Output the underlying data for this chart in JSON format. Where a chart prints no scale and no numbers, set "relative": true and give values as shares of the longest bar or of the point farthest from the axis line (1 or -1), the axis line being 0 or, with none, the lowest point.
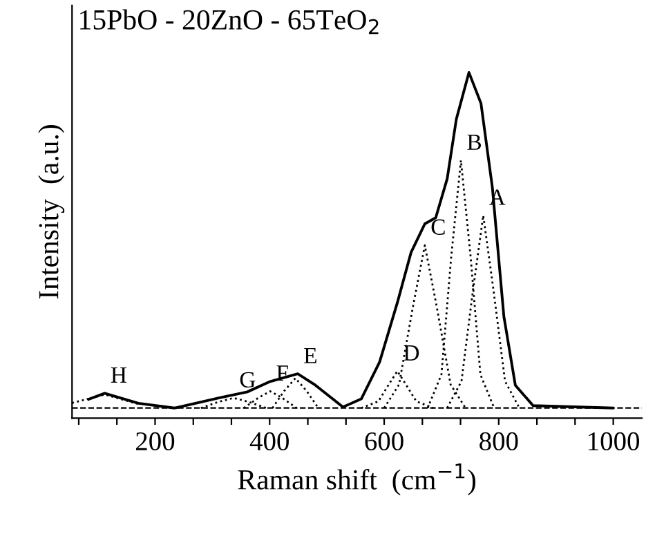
{
  "chart_data": {
    "type": "line",
    "relative": true,
    "title": "15PbO - 20ZnO - 65TeO$_{2}$",
    "xlabel": "Raman shift  (cm$^{−1}$)",
    "ylabel": "Intensity  (a.u.)",
    "xlim": [
      55,
      1050
    ],
    "xticks": [
      {
        "value": 66.7,
        "label": null
      },
      {
        "value": 133.3,
        "label": null
      },
      200,
      {
        "value": 266.7,
        "label": null
      },
      {
        "value": 333.3,
        "label": null
      },
      400,
      {
        "value": 466.7,
        "label": null
      },
      {
        "value": 533.3,
        "label": null
      },
      600,
      {
        "value": 666.7,
        "label": null
      },
      {
        "value": 733.3,
        "label": null
      },
      800,
      {
        "value": 866.7,
        "label": null
      },
      {
        "value": 933.3,
        "label": null
      },
      1000
    ],
    "series": [
      {
        "color": "#000000",
        "line_style": "solid",
        "x": [
          84,
          112,
          171,
          234,
          314,
          361,
          401,
          449,
          480,
          528,
          560,
          592,
          623,
          647,
          671,
          690,
          710,
          726,
          748,
          769,
          789,
          809,
          829,
          860,
          999
        ],
        "values": [
          0.026,
          0.044,
          0.014,
          0,
          0.031,
          0.048,
          0.079,
          0.102,
          0.068,
          0.003,
          0.027,
          0.137,
          0.314,
          0.464,
          0.549,
          0.567,
          0.683,
          0.861,
          1.0,
          0.908,
          0.656,
          0.273,
          0.068,
          0.007,
          0
        ]
      },
      {
        "color": "#000000",
        "line_style": "dotted",
        "x": [
          710,
          735,
          755,
          773,
          791,
          811,
          836
        ],
        "values": [
          0,
          0.08,
          0.35,
          0.574,
          0.35,
          0.08,
          0
        ]
      },
      {
        "color": "#000000",
        "line_style": "dotted",
        "x": [
          676,
          700,
          717,
          734,
          751,
          768,
          792
        ],
        "values": [
          0,
          0.1,
          0.45,
          0.738,
          0.45,
          0.1,
          0
        ]
      },
      {
        "color": "#000000",
        "line_style": "dotted",
        "x": [
          600,
          626,
          650,
          671,
          692,
          716,
          742
        ],
        "values": [
          0,
          0.07,
          0.3,
          0.485,
          0.3,
          0.07,
          0
        ]
      },
      {
        "color": "#000000",
        "line_style": "dotted",
        "x": [
          560,
          590,
          608,
          623,
          638,
          656,
          686
        ],
        "values": [
          0,
          0.02,
          0.07,
          0.11,
          0.07,
          0.02,
          0
        ]
      },
      {
        "color": "#000000",
        "line_style": "dotted",
        "x": [
          405,
          425,
          445,
          465,
          485
        ],
        "values": [
          0,
          0.05,
          0.089,
          0.05,
          0
        ]
      },
      {
        "color": "#000000",
        "line_style": "dotted",
        "x": [
          355,
          380,
          401,
          422,
          447
        ],
        "values": [
          0,
          0.03,
          0.05,
          0.03,
          0
        ]
      },
      {
        "color": "#000000",
        "line_style": "dotted",
        "x": [
          280,
          310,
          337,
          364,
          394
        ],
        "values": [
          0,
          0.018,
          0.03,
          0.018,
          0
        ]
      },
      {
        "color": "#000000",
        "line_style": "dotted",
        "x": [
          55,
          112,
          171
        ],
        "values": [
          0.015,
          0.04,
          0.012
        ]
      }
    ],
    "ref_lines": [
      {
        "axis": "y",
        "value": 0,
        "line_style": "dashed",
        "color": "#000000"
      }
    ],
    "annotations": [
      {
        "text": "A",
        "x": 773,
        "y": 0.574
      },
      {
        "text": "B",
        "x": 734,
        "y": 0.738
      },
      {
        "text": "C",
        "x": 671,
        "y": 0.485
      },
      {
        "text": "D",
        "x": 623,
        "y": 0.11
      },
      {
        "text": "E",
        "x": 449,
        "y": 0.102
      },
      {
        "text": "F",
        "x": 401,
        "y": 0.05
      },
      {
        "text": "G",
        "x": 337,
        "y": 0.03
      },
      {
        "text": "H",
        "x": 112,
        "y": 0.044
      }
    ],
    "grid": false,
    "legend": false
  }
}
